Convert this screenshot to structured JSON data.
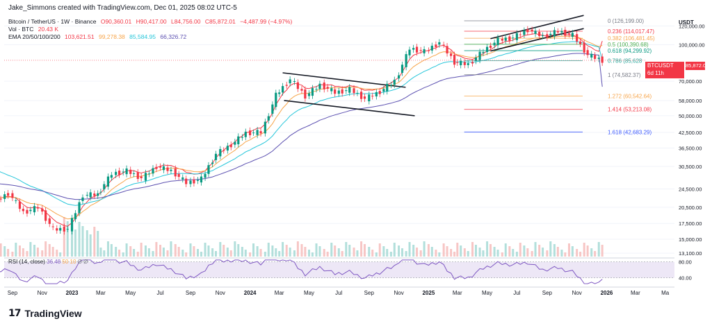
{
  "header": {
    "credit": "Jake_Simmons created with TradingView.com, Dec 01, 2025 08:02 UTC-5",
    "symbol_line": "Bitcoin / TetherUS · 1W · Binance",
    "ohlc": {
      "open": "O90,360.01",
      "high": "H90,417.00",
      "low": "L84,756.00",
      "close": "C85,872.01",
      "change": "−4,487.99 (−4.97%)"
    },
    "vol_label": "Vol · BTC",
    "vol_value": "20.43 K",
    "ema_label": "EMA 20/50/100/200",
    "ema_values": [
      {
        "value": "103,621.51",
        "color": "#f23645"
      },
      {
        "value": "99,278.38",
        "color": "#f7a54a"
      },
      {
        "value": "85,584.95",
        "color": "#26c6da"
      },
      {
        "value": "66,326.72",
        "color": "#5b4fb0"
      }
    ],
    "rsi_label": "RSI (14, close)",
    "rsi_values": [
      {
        "value": "36.48",
        "color": "#7e57c2"
      },
      {
        "value": "50",
        "color": "#f7a54a"
      },
      {
        "value": "10",
        "color": "#f7a54a"
      },
      {
        "value": "Ø",
        "color": "#787b86"
      },
      {
        "value": "Ø",
        "color": "#787b86"
      }
    ]
  },
  "axis": {
    "currency": "USDT",
    "price_ticks": [
      "120,000.00",
      "100,000.00",
      "70,000.00",
      "58,000.00",
      "50,000.00",
      "42,500.00",
      "36,500.00",
      "30,500.00",
      "24,500.00",
      "20,500.00",
      "17,500.00",
      "15,000.00",
      "13,100.00"
    ],
    "rsi_ticks": [
      "80.00",
      "40.00"
    ],
    "time_ticks": [
      "Sep",
      "Nov",
      "2023",
      "Mar",
      "May",
      "Jul",
      "Sep",
      "Nov",
      "2024",
      "Mar",
      "May",
      "Jul",
      "Sep",
      "Nov",
      "2025",
      "Mar",
      "May",
      "Jul",
      "Sep",
      "Nov",
      "2026",
      "Mar",
      "Ma"
    ]
  },
  "price_label": {
    "symbol": "BTCUSDT",
    "price": "85,872.01",
    "countdown": "6d 11h"
  },
  "fib_levels": [
    {
      "ratio": "0",
      "price": "126,199.00",
      "label": "0 (126,199.00)",
      "value": 126199,
      "color": "#787b86"
    },
    {
      "ratio": "0.236",
      "price": "114,017.47",
      "label": "0.236 (114,017.47)",
      "value": 114017.47,
      "color": "#f23645"
    },
    {
      "ratio": "0.382",
      "price": "106,481.45",
      "label": "0.382 (106,481.45)",
      "value": 106481.45,
      "color": "#f7a54a"
    },
    {
      "ratio": "0.5",
      "price": "100,390.68",
      "label": "0.5 (100,390.68)",
      "value": 100390.68,
      "color": "#4caf50"
    },
    {
      "ratio": "0.618",
      "price": "94,299.92",
      "label": "0.618 (94,299.92)",
      "value": 94299.92,
      "color": "#089981"
    },
    {
      "ratio": "0.786",
      "price": "85,628",
      "label": "0.786 (85,628",
      "value": 85628,
      "color": "#26a69a"
    },
    {
      "ratio": "1",
      "price": "74,582.37",
      "label": "1 (74,582.37)",
      "value": 74582.37,
      "color": "#787b86"
    },
    {
      "ratio": "1.272",
      "price": "60,542.64",
      "label": "1.272 (60,542.64)",
      "value": 60542.64,
      "color": "#f7a54a"
    },
    {
      "ratio": "1.414",
      "price": "53,213.08",
      "label": "1.414 (53,213.08)",
      "value": 53213.08,
      "color": "#f23645"
    },
    {
      "ratio": "1.618",
      "price": "42,683.29",
      "label": "1.618 (42,683.29)",
      "value": 42683.29,
      "color": "#3d5afe"
    }
  ],
  "logo": {
    "mark": "17",
    "text": "TradingView"
  },
  "chart_data": {
    "type": "candlestick",
    "title": "Bitcoin / TetherUS · 1W · Binance",
    "ylabel": "USDT",
    "scale": "log",
    "ylim": [
      12500,
      135000
    ],
    "x_range": [
      "Aug 2022",
      "May 2026"
    ],
    "candles": [
      {
        "t": "2022-08",
        "o": 21500,
        "c": 23500
      },
      {
        "t": "2022-09",
        "o": 23500,
        "c": 19500
      },
      {
        "t": "2022-10",
        "o": 19500,
        "c": 20500
      },
      {
        "t": "2022-11",
        "o": 20500,
        "c": 16500
      },
      {
        "t": "2022-12",
        "o": 16500,
        "c": 16600
      },
      {
        "t": "2023-01",
        "o": 16600,
        "c": 23100
      },
      {
        "t": "2023-02",
        "o": 23100,
        "c": 23200
      },
      {
        "t": "2023-03",
        "o": 23200,
        "c": 28400
      },
      {
        "t": "2023-04",
        "o": 28400,
        "c": 29200
      },
      {
        "t": "2023-05",
        "o": 29200,
        "c": 27200
      },
      {
        "t": "2023-06",
        "o": 27200,
        "c": 30500
      },
      {
        "t": "2023-07",
        "o": 30500,
        "c": 29200
      },
      {
        "t": "2023-08",
        "o": 29200,
        "c": 26000
      },
      {
        "t": "2023-09",
        "o": 26000,
        "c": 27000
      },
      {
        "t": "2023-10",
        "o": 27000,
        "c": 34500
      },
      {
        "t": "2023-11",
        "o": 34500,
        "c": 37700
      },
      {
        "t": "2023-12",
        "o": 37700,
        "c": 42300
      },
      {
        "t": "2024-01",
        "o": 42300,
        "c": 42600
      },
      {
        "t": "2024-02",
        "o": 42600,
        "c": 61100
      },
      {
        "t": "2024-03",
        "o": 61100,
        "c": 71300
      },
      {
        "t": "2024-04",
        "o": 71300,
        "c": 60600
      },
      {
        "t": "2024-05",
        "o": 60600,
        "c": 67500
      },
      {
        "t": "2024-06",
        "o": 67500,
        "c": 62700
      },
      {
        "t": "2024-07",
        "o": 62700,
        "c": 64600
      },
      {
        "t": "2024-08",
        "o": 64600,
        "c": 59000
      },
      {
        "t": "2024-09",
        "o": 59000,
        "c": 63300
      },
      {
        "t": "2024-10",
        "o": 63300,
        "c": 70200
      },
      {
        "t": "2024-11",
        "o": 70200,
        "c": 96400
      },
      {
        "t": "2024-12",
        "o": 96400,
        "c": 93400
      },
      {
        "t": "2025-01",
        "o": 93400,
        "c": 102400
      },
      {
        "t": "2025-02",
        "o": 102400,
        "c": 84300
      },
      {
        "t": "2025-03",
        "o": 84300,
        "c": 82500
      },
      {
        "t": "2025-04",
        "o": 82500,
        "c": 94200
      },
      {
        "t": "2025-05",
        "o": 94200,
        "c": 104600
      },
      {
        "t": "2025-06",
        "o": 104600,
        "c": 107100
      },
      {
        "t": "2025-07",
        "o": 107100,
        "c": 115700
      },
      {
        "t": "2025-08",
        "o": 115700,
        "c": 108200
      },
      {
        "t": "2025-09",
        "o": 108200,
        "c": 114000
      },
      {
        "t": "2025-10",
        "o": 114000,
        "c": 109500
      },
      {
        "t": "2025-11",
        "o": 109500,
        "c": 90400
      },
      {
        "t": "2025-12",
        "o": 90360.01,
        "h": 90417,
        "l": 84756,
        "c": 85872.01
      }
    ],
    "ema": [
      {
        "name": "EMA 20",
        "value": 103621.51
      },
      {
        "name": "EMA 50",
        "value": 99278.38
      },
      {
        "name": "EMA 100",
        "value": 85584.95
      },
      {
        "name": "EMA 200",
        "value": 66326.72
      }
    ],
    "rsi": {
      "last": 36.48,
      "upper": 80,
      "lower": 40
    },
    "volume_last": "20.43 K"
  }
}
